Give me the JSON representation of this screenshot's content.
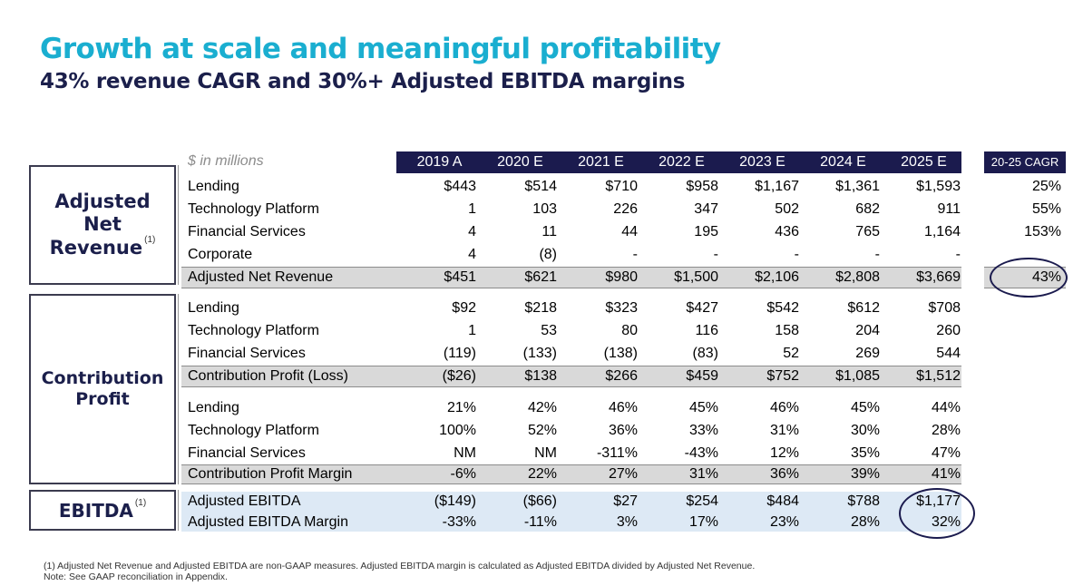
{
  "title": "Growth at scale and meaningful profitability",
  "subtitle": "43% revenue CAGR and 30%+ Adjusted EBITDA margins",
  "table": {
    "units_label": "$ in millions",
    "years": [
      "2019 A",
      "2020 E",
      "2021 E",
      "2022 E",
      "2023 E",
      "2024 E",
      "2025 E"
    ],
    "cagr_header": "20-25 CAGR",
    "rows": [
      {
        "label": "Lending",
        "values": [
          "$443",
          "$514",
          "$710",
          "$958",
          "$1,167",
          "$1,361",
          "$1,593"
        ],
        "cagr": "25%"
      },
      {
        "label": "Technology Platform",
        "values": [
          "1",
          "103",
          "226",
          "347",
          "502",
          "682",
          "911"
        ],
        "cagr": "55%"
      },
      {
        "label": "Financial Services",
        "values": [
          "4",
          "11",
          "44",
          "195",
          "436",
          "765",
          "1,164"
        ],
        "cagr": "153%"
      },
      {
        "label": "Corporate",
        "values": [
          "4",
          "(8)",
          "-",
          "-",
          "-",
          "-",
          "-"
        ],
        "cagr": ""
      },
      {
        "label": "Adjusted Net Revenue",
        "values": [
          "$451",
          "$621",
          "$980",
          "$1,500",
          "$2,106",
          "$2,808",
          "$3,669"
        ],
        "cagr": "43%"
      },
      {
        "label": "Lending",
        "values": [
          "$92",
          "$218",
          "$323",
          "$427",
          "$542",
          "$612",
          "$708"
        ],
        "cagr": ""
      },
      {
        "label": "Technology Platform",
        "values": [
          "1",
          "53",
          "80",
          "116",
          "158",
          "204",
          "260"
        ],
        "cagr": ""
      },
      {
        "label": "Financial Services",
        "values": [
          "(119)",
          "(133)",
          "(138)",
          "(83)",
          "52",
          "269",
          "544"
        ],
        "cagr": ""
      },
      {
        "label": "Contribution Profit (Loss)",
        "values": [
          "($26)",
          "$138",
          "$266",
          "$459",
          "$752",
          "$1,085",
          "$1,512"
        ],
        "cagr": ""
      },
      {
        "label": "Lending",
        "values": [
          "21%",
          "42%",
          "46%",
          "45%",
          "46%",
          "45%",
          "44%"
        ],
        "cagr": ""
      },
      {
        "label": "Technology Platform",
        "values": [
          "100%",
          "52%",
          "36%",
          "33%",
          "31%",
          "30%",
          "28%"
        ],
        "cagr": ""
      },
      {
        "label": "Financial Services",
        "values": [
          "NM",
          "NM",
          "-311%",
          "-43%",
          "12%",
          "35%",
          "47%"
        ],
        "cagr": ""
      },
      {
        "label": "Contribution Profit Margin",
        "values": [
          "-6%",
          "22%",
          "27%",
          "31%",
          "36%",
          "39%",
          "41%"
        ],
        "cagr": ""
      },
      {
        "label": "Adjusted EBITDA",
        "values": [
          "($149)",
          "($66)",
          "$27",
          "$254",
          "$484",
          "$788",
          "$1,177"
        ],
        "cagr": ""
      },
      {
        "label": "Adjusted EBITDA Margin",
        "values": [
          "-33%",
          "-11%",
          "3%",
          "17%",
          "23%",
          "28%",
          "32%"
        ],
        "cagr": ""
      }
    ]
  },
  "sections": {
    "revenue": {
      "line1": "Adjusted",
      "line2": "Net",
      "line3": "Revenue",
      "footnote_mark": "(1)"
    },
    "contribution": {
      "line1": "Contribution",
      "line2": "Profit"
    },
    "ebitda": {
      "label": "EBITDA",
      "footnote_mark": "(1)"
    }
  },
  "footnotes": {
    "note1": "(1) Adjusted Net Revenue and Adjusted EBITDA are non-GAAP measures.  Adjusted EBITDA margin is calculated as Adjusted EBITDA divided by Adjusted Net Revenue.",
    "note2": "Note: See GAAP reconciliation in Appendix."
  },
  "colors": {
    "title": "#1aaed0",
    "navy": "#1b1b4e",
    "highlight_gray": "#d9d9d9",
    "highlight_blue": "#dde9f5"
  }
}
